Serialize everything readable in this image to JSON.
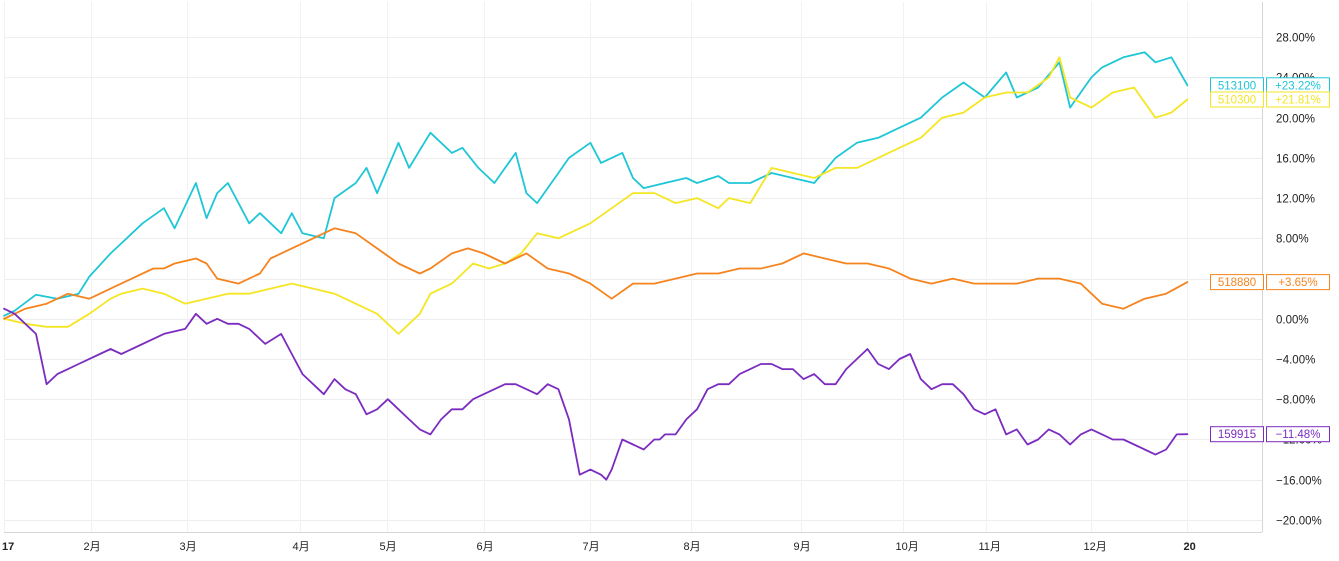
{
  "chart_data": {
    "type": "line",
    "title": "",
    "xlabel": "",
    "ylabel": "",
    "ylim": [
      -20,
      30
    ],
    "y_tick_values": [
      28,
      24,
      20,
      16,
      12,
      8,
      4,
      0,
      -4,
      -8,
      -12,
      -16,
      -20
    ],
    "y_tick_labels": [
      "28.00%",
      "24.00%",
      "20.00%",
      "16.00%",
      "12.00%",
      "8.00%",
      "4.00%",
      "0.00%",
      "−4.00%",
      "−8.00%",
      "−12.00%",
      "−16.00%",
      "−20.00%"
    ],
    "x_range": [
      0,
      11.8
    ],
    "x_ticks": [
      {
        "label": "17",
        "x": 0.0,
        "bold": true
      },
      {
        "label": "2月",
        "x": 0.82
      },
      {
        "label": "3月",
        "x": 1.72
      },
      {
        "label": "4月",
        "x": 2.78
      },
      {
        "label": "5月",
        "x": 3.59
      },
      {
        "label": "6月",
        "x": 4.5
      },
      {
        "label": "7月",
        "x": 5.5
      },
      {
        "label": "8月",
        "x": 6.44
      },
      {
        "label": "9月",
        "x": 7.48
      },
      {
        "label": "10月",
        "x": 8.43
      },
      {
        "label": "11月",
        "x": 9.21
      },
      {
        "label": "12月",
        "x": 10.2
      },
      {
        "label": "20",
        "x": 11.1,
        "bold": true
      }
    ],
    "grid": true,
    "legend": "none",
    "series": [
      {
        "name": "513100",
        "color": "#1ec6d6",
        "end_label": "+23.22%",
        "x": [
          0.0,
          0.1,
          0.3,
          0.5,
          0.7,
          0.8,
          1.0,
          1.1,
          1.3,
          1.5,
          1.6,
          1.8,
          1.9,
          2.0,
          2.1,
          2.3,
          2.4,
          2.6,
          2.7,
          2.8,
          3.0,
          3.1,
          3.3,
          3.4,
          3.5,
          3.7,
          3.8,
          4.0,
          4.2,
          4.3,
          4.45,
          4.6,
          4.8,
          4.9,
          5.0,
          5.2,
          5.3,
          5.5,
          5.6,
          5.8,
          5.9,
          6.0,
          6.2,
          6.4,
          6.5,
          6.7,
          6.8,
          7.0,
          7.2,
          7.4,
          7.6,
          7.8,
          8.0,
          8.2,
          8.4,
          8.6,
          8.8,
          9.0,
          9.2,
          9.4,
          9.5,
          9.7,
          9.9,
          10.0,
          10.2,
          10.3,
          10.5,
          10.7,
          10.8,
          10.95,
          11.1
        ],
        "values": [
          0.3,
          0.8,
          2.4,
          2.0,
          2.5,
          4.2,
          6.5,
          7.5,
          9.5,
          11.0,
          9.0,
          13.5,
          10.0,
          12.5,
          13.5,
          9.5,
          10.5,
          8.5,
          10.5,
          8.5,
          8.0,
          12.0,
          13.5,
          15.0,
          12.5,
          17.5,
          15.0,
          18.5,
          16.5,
          17.0,
          15.0,
          13.5,
          16.5,
          12.5,
          11.5,
          14.5,
          16.0,
          17.5,
          15.5,
          16.5,
          14.0,
          13.0,
          13.5,
          14.0,
          13.5,
          14.2,
          13.5,
          13.5,
          14.5,
          14.0,
          13.5,
          16.0,
          17.5,
          18.0,
          19.0,
          20.0,
          22.0,
          23.5,
          22.0,
          24.5,
          22.0,
          23.0,
          25.5,
          21.0,
          24.0,
          25.0,
          26.0,
          26.5,
          25.5,
          26.0,
          23.22
        ]
      },
      {
        "name": "510300",
        "color": "#f4e623",
        "end_label": "+21.81%",
        "x": [
          0.0,
          0.2,
          0.4,
          0.6,
          0.8,
          1.0,
          1.1,
          1.3,
          1.5,
          1.7,
          1.9,
          2.1,
          2.3,
          2.5,
          2.7,
          2.9,
          3.1,
          3.3,
          3.5,
          3.7,
          3.9,
          4.0,
          4.2,
          4.4,
          4.55,
          4.7,
          4.85,
          5.0,
          5.2,
          5.3,
          5.5,
          5.7,
          5.9,
          6.1,
          6.3,
          6.5,
          6.7,
          6.8,
          7.0,
          7.2,
          7.4,
          7.6,
          7.8,
          8.0,
          8.2,
          8.4,
          8.6,
          8.8,
          9.0,
          9.2,
          9.4,
          9.6,
          9.8,
          9.9,
          10.0,
          10.2,
          10.4,
          10.6,
          10.8,
          10.95,
          11.1
        ],
        "values": [
          0.0,
          -0.5,
          -0.8,
          -0.8,
          0.5,
          2.0,
          2.5,
          3.0,
          2.5,
          1.5,
          2.0,
          2.5,
          2.5,
          3.0,
          3.5,
          3.0,
          2.5,
          1.5,
          0.5,
          -1.5,
          0.5,
          2.5,
          3.5,
          5.5,
          5.0,
          5.5,
          6.5,
          8.5,
          8.0,
          8.5,
          9.5,
          11.0,
          12.5,
          12.5,
          11.5,
          12.0,
          11.0,
          12.0,
          11.5,
          15.0,
          14.5,
          14.0,
          15.0,
          15.0,
          16.0,
          17.0,
          18.0,
          20.0,
          20.5,
          22.0,
          22.5,
          22.5,
          24.0,
          26.0,
          22.0,
          21.0,
          22.5,
          23.0,
          20.0,
          20.5,
          21.81
        ]
      },
      {
        "name": "518880",
        "color": "#f5841f",
        "end_label": "+3.65%",
        "x": [
          0.0,
          0.2,
          0.4,
          0.6,
          0.8,
          0.9,
          1.0,
          1.2,
          1.4,
          1.5,
          1.6,
          1.8,
          1.9,
          2.0,
          2.2,
          2.4,
          2.5,
          2.7,
          2.8,
          3.0,
          3.1,
          3.3,
          3.5,
          3.7,
          3.9,
          4.0,
          4.2,
          4.35,
          4.5,
          4.7,
          4.9,
          5.1,
          5.3,
          5.5,
          5.7,
          5.9,
          6.1,
          6.3,
          6.5,
          6.7,
          6.9,
          7.1,
          7.3,
          7.5,
          7.7,
          7.9,
          8.1,
          8.3,
          8.5,
          8.7,
          8.9,
          9.1,
          9.3,
          9.5,
          9.7,
          9.9,
          10.1,
          10.3,
          10.5,
          10.7,
          10.9,
          11.1
        ],
        "values": [
          0.0,
          1.0,
          1.5,
          2.5,
          2.0,
          2.5,
          3.0,
          4.0,
          5.0,
          5.0,
          5.5,
          6.0,
          5.5,
          4.0,
          3.5,
          4.5,
          6.0,
          7.0,
          7.5,
          8.5,
          9.0,
          8.5,
          7.0,
          5.5,
          4.5,
          5.0,
          6.5,
          7.0,
          6.5,
          5.5,
          6.5,
          5.0,
          4.5,
          3.5,
          2.0,
          3.5,
          3.5,
          4.0,
          4.5,
          4.5,
          5.0,
          5.0,
          5.5,
          6.5,
          6.0,
          5.5,
          5.5,
          5.0,
          4.0,
          3.5,
          4.0,
          3.5,
          3.5,
          3.5,
          4.0,
          4.0,
          3.5,
          1.5,
          1.0,
          2.0,
          2.5,
          3.65
        ]
      },
      {
        "name": "159915",
        "color": "#7b2cbf",
        "end_label": "−11.48%",
        "x": [
          0.0,
          0.1,
          0.3,
          0.4,
          0.5,
          0.6,
          0.7,
          0.9,
          1.0,
          1.1,
          1.2,
          1.4,
          1.5,
          1.7,
          1.8,
          1.9,
          2.0,
          2.1,
          2.2,
          2.3,
          2.45,
          2.6,
          2.7,
          2.8,
          2.9,
          3.0,
          3.1,
          3.2,
          3.3,
          3.4,
          3.5,
          3.6,
          3.7,
          3.8,
          3.9,
          4.0,
          4.1,
          4.2,
          4.3,
          4.4,
          4.5,
          4.6,
          4.7,
          4.8,
          4.9,
          5.0,
          5.1,
          5.2,
          5.3,
          5.4,
          5.5,
          5.6,
          5.65,
          5.7,
          5.8,
          5.9,
          6.0,
          6.1,
          6.15,
          6.2,
          6.3,
          6.4,
          6.5,
          6.6,
          6.7,
          6.8,
          6.9,
          7.0,
          7.1,
          7.2,
          7.3,
          7.4,
          7.5,
          7.6,
          7.7,
          7.8,
          7.9,
          8.0,
          8.1,
          8.2,
          8.3,
          8.4,
          8.5,
          8.6,
          8.7,
          8.8,
          8.9,
          9.0,
          9.1,
          9.2,
          9.3,
          9.4,
          9.5,
          9.6,
          9.7,
          9.8,
          9.9,
          10.0,
          10.1,
          10.2,
          10.3,
          10.4,
          10.5,
          10.6,
          10.7,
          10.8,
          10.9,
          11.0,
          11.1
        ],
        "values": [
          1.0,
          0.5,
          -1.5,
          -6.5,
          -5.5,
          -5.0,
          -4.5,
          -3.5,
          -3.0,
          -3.5,
          -3.0,
          -2.0,
          -1.5,
          -1.0,
          0.5,
          -0.5,
          0.0,
          -0.5,
          -0.5,
          -1.0,
          -2.5,
          -1.5,
          -3.5,
          -5.5,
          -6.5,
          -7.5,
          -6.0,
          -7.0,
          -7.5,
          -9.5,
          -9.0,
          -8.0,
          -9.0,
          -10.0,
          -11.0,
          -11.5,
          -10.0,
          -9.0,
          -9.0,
          -8.0,
          -7.5,
          -7.0,
          -6.5,
          -6.5,
          -7.0,
          -7.5,
          -6.5,
          -7.0,
          -10.0,
          -15.5,
          -15.0,
          -15.5,
          -16.0,
          -15.0,
          -12.0,
          -12.5,
          -13.0,
          -12.0,
          -12.0,
          -11.5,
          -11.5,
          -10.0,
          -9.0,
          -7.0,
          -6.5,
          -6.5,
          -5.5,
          -5.0,
          -4.5,
          -4.5,
          -5.0,
          -5.0,
          -6.0,
          -5.5,
          -6.5,
          -6.5,
          -5.0,
          -4.0,
          -3.0,
          -4.5,
          -5.0,
          -4.0,
          -3.5,
          -6.0,
          -7.0,
          -6.5,
          -6.5,
          -7.5,
          -9.0,
          -9.5,
          -9.0,
          -11.5,
          -11.0,
          -12.5,
          -12.0,
          -11.0,
          -11.5,
          -12.5,
          -11.5,
          -11.0,
          -11.5,
          -12.0,
          -12.0,
          -12.5,
          -13.0,
          -13.5,
          -13.0,
          -11.5,
          -11.48
        ]
      }
    ]
  }
}
